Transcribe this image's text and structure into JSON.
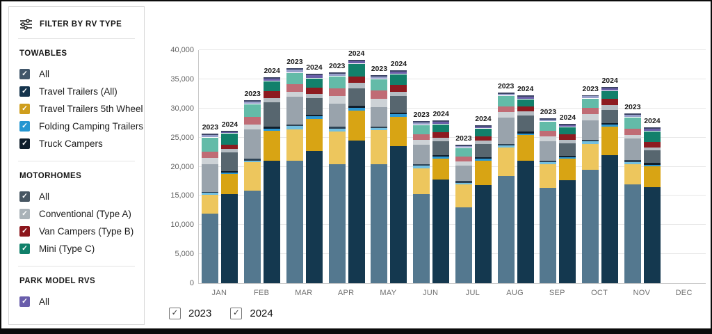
{
  "sidebar": {
    "title": "FILTER BY RV TYPE",
    "filter_icon": "sliders-icon",
    "sections": [
      {
        "heading": "TOWABLES",
        "items": [
          {
            "label": "All",
            "color": "#41566a",
            "checked": true
          },
          {
            "label": "Travel Trailers (All)",
            "color": "#14334c",
            "checked": true
          },
          {
            "label": "Travel Trailers 5th Wheel",
            "color": "#cf9e1d",
            "checked": true
          },
          {
            "label": "Folding Camping Trailers",
            "color": "#2596d1",
            "checked": true
          },
          {
            "label": "Truck Campers",
            "color": "#0e1d2b",
            "checked": true
          }
        ]
      },
      {
        "heading": "MOTORHOMES",
        "items": [
          {
            "label": "All",
            "color": "#475662",
            "checked": true
          },
          {
            "label": "Conventional (Type A)",
            "color": "#a9b2b8",
            "checked": true
          },
          {
            "label": "Van Campers (Type B)",
            "color": "#8c161c",
            "checked": true
          },
          {
            "label": "Mini (Type C)",
            "color": "#10806a",
            "checked": true
          }
        ]
      },
      {
        "heading": "PARK MODEL RVS",
        "items": [
          {
            "label": "All",
            "color": "#695dab",
            "checked": true
          }
        ]
      }
    ]
  },
  "year_filter": {
    "options": [
      {
        "label": "2023",
        "checked": true
      },
      {
        "label": "2024",
        "checked": true
      }
    ]
  },
  "chart_data": {
    "type": "bar",
    "stacked": true,
    "grouped_by_year": true,
    "categories": [
      "JAN",
      "FEB",
      "MAR",
      "APR",
      "MAY",
      "JUN",
      "JUL",
      "AUG",
      "SEP",
      "OCT",
      "NOV",
      "DEC"
    ],
    "bar_group_labels": [
      "2023",
      "2024"
    ],
    "ylim": [
      0,
      40000
    ],
    "yticks": [
      0,
      5000,
      10000,
      15000,
      20000,
      25000,
      30000,
      35000,
      40000
    ],
    "ytick_labels": [
      "0",
      "5,000",
      "10,000",
      "15,000",
      "20,000",
      "25,000",
      "30,000",
      "35,000",
      "40,000"
    ],
    "grid": true,
    "legend_position": "left-sidebar",
    "series": [
      {
        "name": "Travel Trailers (All)",
        "color_2023": "#54788f",
        "color_2024": "#14384f",
        "values_2023": [
          12100,
          16000,
          21100,
          20600,
          20600,
          15400,
          13200,
          18500,
          16500,
          19600,
          17100,
          0
        ],
        "values_2024": [
          15400,
          21100,
          22800,
          24600,
          23700,
          18000,
          17000,
          21200,
          17800,
          22100,
          16600,
          0
        ]
      },
      {
        "name": "Travel Trailers 5th Wheel",
        "color_2023": "#edc65d",
        "color_2024": "#d8a414",
        "values_2023": [
          3200,
          4900,
          5500,
          5600,
          5800,
          4500,
          3900,
          5000,
          4100,
          4500,
          3500,
          0
        ],
        "values_2024": [
          3500,
          5200,
          5600,
          5200,
          5000,
          3600,
          4200,
          4400,
          3700,
          4900,
          3600,
          0
        ]
      },
      {
        "name": "Folding Camping Trailers",
        "color_2023": "#74c0e0",
        "color_2024": "#2e98d2",
        "values_2023": [
          350,
          300,
          500,
          500,
          400,
          400,
          300,
          300,
          300,
          400,
          400,
          0
        ],
        "values_2024": [
          300,
          400,
          400,
          500,
          500,
          300,
          300,
          300,
          300,
          400,
          300,
          0
        ]
      },
      {
        "name": "Truck Campers",
        "color_2023": "#2e4355",
        "color_2024": "#0f1e2c",
        "values_2023": [
          200,
          300,
          300,
          300,
          300,
          300,
          300,
          300,
          300,
          300,
          300,
          0
        ],
        "values_2024": [
          200,
          300,
          300,
          300,
          300,
          300,
          300,
          300,
          300,
          300,
          300,
          0
        ]
      },
      {
        "name": "Motorhomes All",
        "color_2023": "#99a3ac",
        "color_2024": "#57666f",
        "values_2023": [
          4800,
          5100,
          4800,
          4000,
          3300,
          3400,
          2700,
          4500,
          3400,
          3400,
          3800,
          0
        ],
        "values_2024": [
          3300,
          4200,
          2900,
          3100,
          2800,
          2400,
          2300,
          2800,
          2100,
          2300,
          2200,
          0
        ]
      },
      {
        "name": "Conventional (Type A)",
        "color_2023": "#cdd2d6",
        "color_2024": "#b4bcc2",
        "values_2023": [
          1100,
          800,
          900,
          1300,
          1500,
          800,
          700,
          1000,
          800,
          1000,
          600,
          0
        ],
        "values_2024": [
          500,
          800,
          700,
          900,
          800,
          600,
          600,
          700,
          600,
          800,
          500,
          0
        ]
      },
      {
        "name": "Van Campers (Type B)",
        "color_2023": "#c06c75",
        "color_2024": "#8d1b20",
        "values_2023": [
          1000,
          1400,
          1300,
          1300,
          1400,
          1000,
          900,
          1000,
          1000,
          1100,
          1000,
          0
        ],
        "values_2024": [
          800,
          1200,
          1100,
          1100,
          1200,
          900,
          700,
          900,
          1000,
          1100,
          1000,
          0
        ]
      },
      {
        "name": "Mini (Type C)",
        "color_2023": "#63bba8",
        "color_2024": "#12806b",
        "values_2023": [
          2500,
          2100,
          1900,
          2100,
          1900,
          1600,
          1400,
          1700,
          1500,
          1600,
          1900,
          0
        ],
        "values_2024": [
          1900,
          1700,
          1600,
          2100,
          1800,
          1400,
          1300,
          1200,
          1200,
          1300,
          1800,
          0
        ]
      },
      {
        "name": "Park Model RVs All",
        "color_2023": "#98a0cb",
        "color_2024": "#6a5fa8",
        "values_2023": [
          450,
          500,
          600,
          500,
          500,
          400,
          400,
          400,
          400,
          400,
          500,
          0
        ],
        "values_2024": [
          300,
          400,
          500,
          500,
          400,
          400,
          400,
          400,
          400,
          500,
          400,
          0
        ]
      }
    ]
  }
}
